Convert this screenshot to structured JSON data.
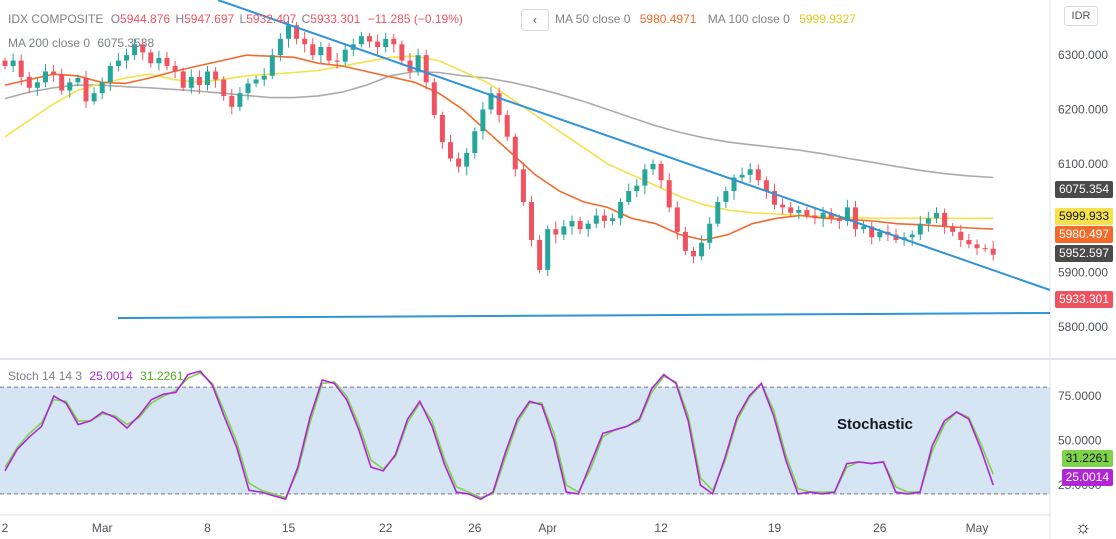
{
  "header": {
    "symbol": "IDX COMPOSITE",
    "o_label": "O",
    "o_value": "5944.876",
    "h_label": "H",
    "h_value": "5947.697",
    "l_label": "L",
    "l_value": "5932.407",
    "c_label": "C",
    "c_value": "5933.301",
    "change": "−11.285 (−0.19%)",
    "ma50_label": "MA 50 close 0",
    "ma50_value": "5980.4971",
    "ma100_label": "MA 100 close 0",
    "ma100_value": "5999.9327",
    "ma200_label": "MA 200 close 0",
    "ma200_value": "6075.3538",
    "back_icon": "chevron-left-icon",
    "currency": "IDR"
  },
  "stoch_legend": {
    "label": "Stoch 14 14 3",
    "k_value": "25.0014",
    "d_value": "31.2261"
  },
  "annotation": "Stochastic",
  "price_tags": [
    {
      "value": "6075.354",
      "color": "#4a4a4a",
      "text_color": "#ffffff"
    },
    {
      "value": "5999.933",
      "color": "#f5e14a",
      "text_color": "#131722"
    },
    {
      "value": "5980.497",
      "color": "#f26b2a",
      "text_color": "#ffffff"
    },
    {
      "value": "5952.597",
      "color": "#4a4a4a",
      "text_color": "#ffffff"
    },
    {
      "value": "5933.301",
      "color": "#ef5360",
      "text_color": "#ffffff"
    }
  ],
  "stoch_tags": [
    {
      "value": "31.2261",
      "color": "#7fd34a",
      "text_color": "#131722"
    },
    {
      "value": "25.0014",
      "color": "#b026d6",
      "text_color": "#ffffff"
    }
  ],
  "settings_icon": "gear-icon",
  "chart_data": {
    "type": "candlestick",
    "price_axis_ticks": [
      5800,
      5900,
      6000,
      6100,
      6200,
      6300
    ],
    "price_axis_labels": [
      "5800.000",
      "5900.000",
      "6000.000",
      "6100.000",
      "6200.000",
      "6300.000"
    ],
    "stoch_axis_ticks": [
      25,
      50,
      75
    ],
    "stoch_axis_labels": [
      "25.0000",
      "50.0000",
      "75.0000"
    ],
    "stoch_bands": [
      20,
      80
    ],
    "x_ticks": [
      {
        "label": "2",
        "bar": 0
      },
      {
        "label": "Mar",
        "bar": 12
      },
      {
        "label": "8",
        "bar": 25
      },
      {
        "label": "15",
        "bar": 35
      },
      {
        "label": "22",
        "bar": 47
      },
      {
        "label": "26",
        "bar": 58
      },
      {
        "label": "Apr",
        "bar": 67
      },
      {
        "label": "12",
        "bar": 81
      },
      {
        "label": "19",
        "bar": 95
      },
      {
        "label": "26",
        "bar": 108
      },
      {
        "label": "May",
        "bar": 120
      }
    ],
    "colors": {
      "up": "#26a69a",
      "down": "#ef5360",
      "ma50": "#f26b2a",
      "ma100": "#f5e14a",
      "ma200": "#ababab",
      "trend": "#2f94d8",
      "stoch_k": "#b026d6",
      "stoch_d": "#7fd34a",
      "stoch_fill": "#cfe0f1"
    },
    "closes": [
      6280,
      6290,
      6260,
      6240,
      6250,
      6270,
      6265,
      6235,
      6250,
      6258,
      6215,
      6230,
      6250,
      6280,
      6290,
      6300,
      6320,
      6305,
      6285,
      6295,
      6280,
      6270,
      6240,
      6260,
      6245,
      6270,
      6255,
      6225,
      6205,
      6230,
      6248,
      6255,
      6262,
      6300,
      6330,
      6355,
      6330,
      6320,
      6300,
      6315,
      6290,
      6288,
      6310,
      6320,
      6335,
      6325,
      6315,
      6330,
      6320,
      6290,
      6270,
      6300,
      6250,
      6190,
      6140,
      6110,
      6095,
      6120,
      6160,
      6200,
      6230,
      6190,
      6150,
      6090,
      6030,
      5960,
      5905,
      5980,
      5970,
      5985,
      5995,
      5980,
      5990,
      6005,
      5995,
      6000,
      6030,
      6050,
      6060,
      6090,
      6100,
      6070,
      6020,
      5975,
      5940,
      5930,
      5955,
      5990,
      6030,
      6050,
      6075,
      6080,
      6090,
      6070,
      6050,
      6025,
      6020,
      6010,
      6015,
      6005,
      6000,
      6010,
      6000,
      5995,
      6020,
      5980,
      5985,
      5965,
      5975,
      5970,
      5960,
      5965,
      5970,
      5990,
      6000,
      6010,
      5985,
      5975,
      5960,
      5952,
      5945,
      5944,
      5933
    ],
    "ma50": [
      6245,
      6255,
      6265,
      6262,
      6250,
      6248,
      6258,
      6270,
      6280,
      6290,
      6300,
      6298,
      6296,
      6285,
      6280,
      6270,
      6260,
      6250,
      6230,
      6200,
      6160,
      6120,
      6080,
      6050,
      6030,
      6020,
      6000,
      5990,
      5970,
      5960,
      5970,
      5990,
      6000,
      6005,
      6000,
      5998,
      5995,
      5990,
      5988,
      5985,
      5982,
      5980
    ],
    "ma100": [
      6150,
      6180,
      6210,
      6235,
      6248,
      6258,
      6265,
      6255,
      6250,
      6255,
      6262,
      6265,
      6268,
      6272,
      6280,
      6288,
      6296,
      6298,
      6290,
      6270,
      6250,
      6220,
      6190,
      6160,
      6130,
      6100,
      6080,
      6060,
      6040,
      6025,
      6015,
      6010,
      6008,
      6005,
      6003,
      6002,
      6000,
      6000,
      6000,
      6000,
      6000,
      6000
    ],
    "ma200": [
      6220,
      6232,
      6240,
      6245,
      6245,
      6242,
      6240,
      6237,
      6234,
      6230,
      6226,
      6222,
      6222,
      6225,
      6232,
      6245,
      6262,
      6270,
      6268,
      6262,
      6258,
      6250,
      6240,
      6228,
      6215,
      6200,
      6185,
      6170,
      6158,
      6148,
      6140,
      6135,
      6130,
      6125,
      6118,
      6110,
      6103,
      6095,
      6088,
      6082,
      6078,
      6075
    ],
    "stoch_k": [
      33,
      45,
      52,
      58,
      75,
      71,
      59,
      61,
      66,
      63,
      57,
      64,
      73,
      76,
      77,
      87,
      89,
      81,
      63,
      46,
      22,
      21,
      19,
      17,
      35,
      63,
      84,
      82,
      73,
      56,
      35,
      33,
      42,
      62,
      72,
      58,
      37,
      21,
      20,
      17,
      21,
      43,
      62,
      72,
      70,
      50,
      21,
      20,
      37,
      54,
      56,
      58,
      62,
      79,
      87,
      82,
      61,
      25,
      20,
      40,
      63,
      75,
      82,
      64,
      39,
      20,
      21,
      20,
      21,
      37,
      38,
      37,
      38,
      21,
      20,
      21,
      47,
      61,
      66,
      62,
      45,
      25
    ],
    "stoch_d": [
      35,
      46,
      54,
      60,
      73,
      72,
      61,
      61,
      65,
      64,
      59,
      63,
      71,
      75,
      78,
      85,
      88,
      82,
      66,
      49,
      26,
      22,
      20,
      18,
      33,
      60,
      82,
      83,
      75,
      59,
      39,
      34,
      41,
      60,
      71,
      61,
      40,
      24,
      21,
      18,
      20,
      40,
      60,
      71,
      71,
      54,
      25,
      21,
      34,
      52,
      56,
      58,
      61,
      77,
      86,
      83,
      64,
      29,
      22,
      38,
      61,
      74,
      82,
      67,
      42,
      23,
      21,
      21,
      21,
      35,
      38,
      37,
      38,
      24,
      21,
      21,
      44,
      59,
      66,
      63,
      48,
      31
    ]
  }
}
